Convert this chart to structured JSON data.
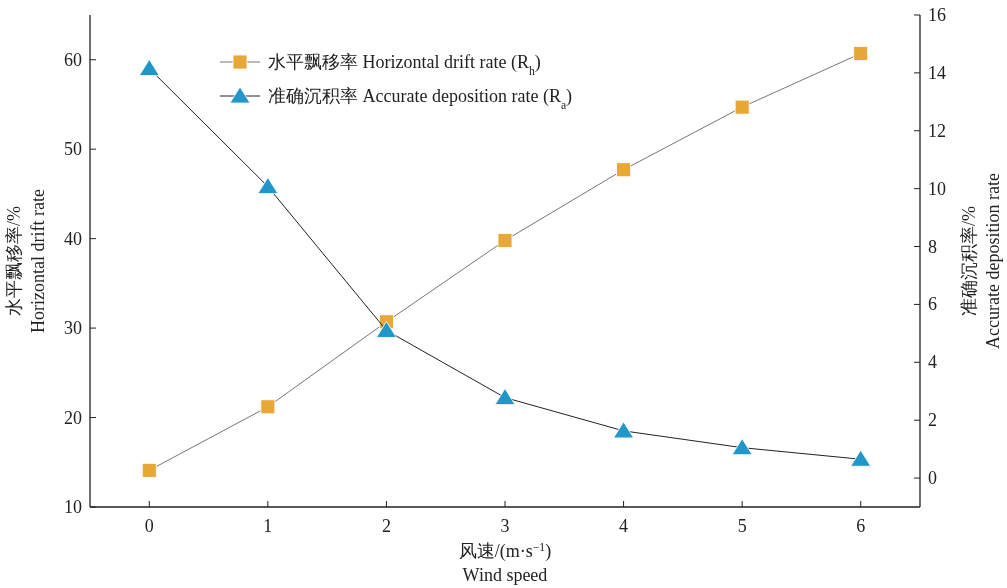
{
  "chart_data": {
    "type": "line",
    "x": [
      0,
      1,
      2,
      3,
      4,
      5,
      6
    ],
    "xlabel": "风速/(m·s$^{−1}$)\nWind speed",
    "ylabel": "水平飘移率/%\nHorizontal drift rate",
    "y2label": "准确沉积率/%\nAccurate deposition rate",
    "xlim": [
      -0.5,
      6.5
    ],
    "xticks": [
      0,
      1,
      2,
      3,
      4,
      5,
      6
    ],
    "ylim": [
      10,
      65
    ],
    "yticks": [
      10,
      20,
      30,
      40,
      50,
      60
    ],
    "y2lim": [
      -1,
      16
    ],
    "y2ticks": [
      0,
      2,
      4,
      6,
      8,
      10,
      12,
      14,
      16
    ],
    "legend": "top",
    "grid": false,
    "series": [
      {
        "name": "水平飘移率 Horizontal drift rate (R$_{h}$)",
        "color": "#e8a838",
        "marker": "square",
        "values": [
          14.1,
          21.2,
          30.7,
          39.8,
          47.7,
          54.7,
          60.7
        ]
      },
      {
        "name": "准确沉积率 Accurate deposition rate (R$_{a}$)",
        "color": "#2196c8",
        "marker": "triangle",
        "axis": "y2",
        "values": [
          14.15,
          10.07,
          5.1,
          2.78,
          1.63,
          1.05,
          0.65
        ]
      }
    ]
  }
}
